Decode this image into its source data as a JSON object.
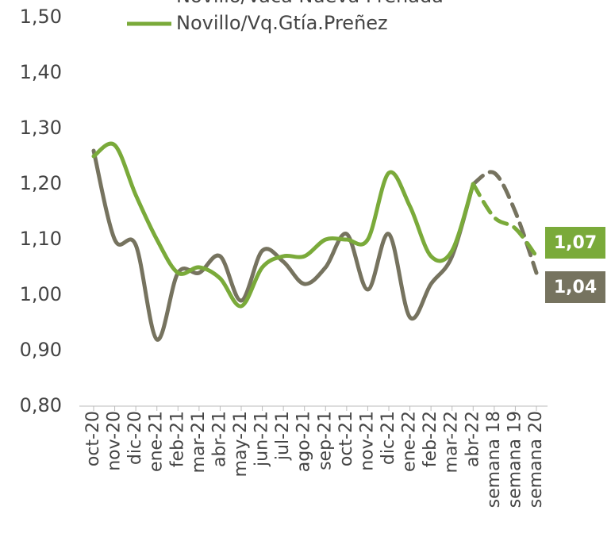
{
  "chart_data": {
    "type": "line",
    "categories": [
      "oct-20",
      "nov-20",
      "dic-20",
      "ene-21",
      "feb-21",
      "mar-21",
      "abr-21",
      "may-21",
      "jun-21",
      "jul-21",
      "ago-21",
      "sep-21",
      "oct-21",
      "nov-21",
      "dic-21",
      "ene-22",
      "feb-22",
      "mar-22",
      "abr-22",
      "semana 18",
      "semana 19",
      "semana 20"
    ],
    "projection_start": "abr-22",
    "series": [
      {
        "name": "Novillo/Vaca Nueva Preñada",
        "color": "#76735f",
        "values": [
          1.26,
          1.1,
          1.09,
          0.92,
          1.04,
          1.04,
          1.07,
          0.99,
          1.08,
          1.06,
          1.02,
          1.05,
          1.11,
          1.01,
          1.11,
          0.96,
          1.02,
          1.07,
          1.2,
          1.22,
          1.15,
          1.04
        ],
        "value_labels": [
          null,
          null,
          null,
          null,
          null,
          null,
          null,
          null,
          null,
          null,
          null,
          null,
          null,
          null,
          null,
          null,
          null,
          null,
          null,
          null,
          null,
          "1,04"
        ]
      },
      {
        "name": "Novillo/Vq.Gtía.Preñez",
        "color": "#7aaa3a",
        "values": [
          1.25,
          1.27,
          1.18,
          1.1,
          1.04,
          1.05,
          1.03,
          0.98,
          1.05,
          1.07,
          1.07,
          1.1,
          1.1,
          1.1,
          1.22,
          1.16,
          1.07,
          1.08,
          1.2,
          1.14,
          1.12,
          1.07
        ],
        "value_labels": [
          null,
          null,
          null,
          null,
          null,
          null,
          null,
          null,
          null,
          null,
          null,
          null,
          null,
          null,
          null,
          null,
          null,
          null,
          null,
          null,
          null,
          "1,07"
        ]
      }
    ],
    "ylim": [
      0.8,
      1.5
    ],
    "yticks": [
      {
        "value": 0.8,
        "label": "0,80"
      },
      {
        "value": 0.9,
        "label": "0,90"
      },
      {
        "value": 1.0,
        "label": "1,00"
      },
      {
        "value": 1.1,
        "label": "1,10"
      },
      {
        "value": 1.2,
        "label": "1,20"
      },
      {
        "value": 1.3,
        "label": "1,30"
      },
      {
        "value": 1.4,
        "label": "1,40"
      },
      {
        "value": 1.5,
        "label": "1,50"
      }
    ],
    "grid": false
  }
}
